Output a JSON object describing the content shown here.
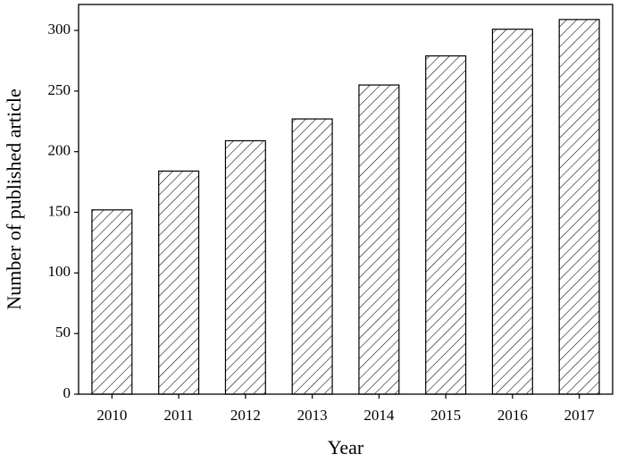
{
  "chart_data": {
    "type": "bar",
    "x_label": "Year",
    "y_label": "Number of published article",
    "categories": [
      "2010",
      "2011",
      "2012",
      "2013",
      "2014",
      "2015",
      "2016",
      "2017"
    ],
    "values": [
      152,
      184,
      209,
      227,
      255,
      279,
      301,
      309
    ],
    "color": "#000000",
    "pattern": "hatch",
    "ylim": [
      0,
      321.4
    ],
    "yticks": [
      0,
      50,
      100,
      150,
      200,
      250,
      300
    ]
  }
}
